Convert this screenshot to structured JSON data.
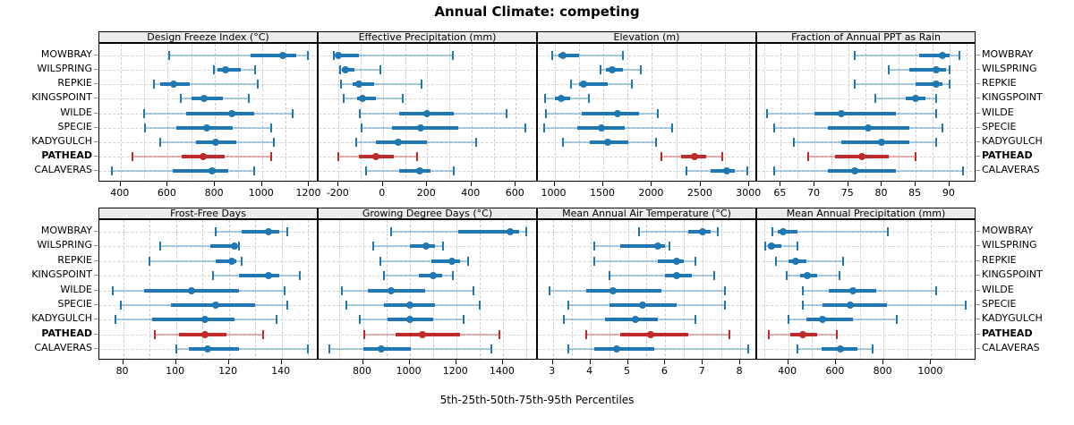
{
  "title": "Annual Climate: competing",
  "footer": "5th-25th-50th-75th-95th Percentiles",
  "sites": [
    "MOWBRAY",
    "WILSPRING",
    "REPKIE",
    "KINGSPOINT",
    "WILDE",
    "SPECIE",
    "KADYGULCH",
    "PATHEAD",
    "CALAVERAS"
  ],
  "highlight_site": "PATHEAD",
  "percentile_labels": [
    5,
    25,
    50,
    75,
    95
  ],
  "colors": {
    "series": "#1f77b4",
    "series_light": "rgba(31,119,180,0.35)",
    "highlight": "#bf2a2a",
    "highlight_light": "rgba(191,42,42,0.35)",
    "grid": "#d4d4d4",
    "strip_bg": "#ebebeb",
    "border": "#000000"
  },
  "chart_data": [
    {
      "type": "percentile-range",
      "title": "Design Freeze Index (°C)",
      "xlim": [
        310,
        1240
      ],
      "ticks": [
        400,
        600,
        800,
        1000,
        1200
      ],
      "values": [
        [
          605,
          950,
          1090,
          1145,
          1195
        ],
        [
          795,
          810,
          845,
          910,
          970
        ],
        [
          540,
          570,
          625,
          695,
          980
        ],
        [
          655,
          700,
          755,
          835,
          945
        ],
        [
          500,
          680,
          870,
          965,
          1130
        ],
        [
          505,
          635,
          765,
          875,
          1040
        ],
        [
          570,
          720,
          805,
          890,
          1050
        ],
        [
          450,
          660,
          750,
          840,
          1040
        ],
        [
          365,
          620,
          790,
          855,
          965
        ]
      ]
    },
    {
      "type": "percentile-range",
      "title": "Effective Precipitation (mm)",
      "xlim": [
        -290,
        700
      ],
      "ticks": [
        -200,
        0,
        200,
        400,
        600
      ],
      "values": [
        [
          -220,
          -212,
          -200,
          -110,
          315
        ],
        [
          -195,
          -185,
          -170,
          -130,
          -10
        ],
        [
          -190,
          -135,
          -110,
          -40,
          175
        ],
        [
          -175,
          -115,
          -90,
          -30,
          90
        ],
        [
          -105,
          75,
          200,
          320,
          560
        ],
        [
          -95,
          40,
          170,
          340,
          645
        ],
        [
          -120,
          -30,
          70,
          200,
          420
        ],
        [
          -200,
          -110,
          -30,
          50,
          155
        ],
        [
          -75,
          75,
          165,
          215,
          320
        ]
      ]
    },
    {
      "type": "percentile-range",
      "title": "Elevation (m)",
      "xlim": [
        830,
        3080
      ],
      "ticks": [
        1000,
        1500,
        2000,
        2500,
        3000
      ],
      "values": [
        [
          980,
          1040,
          1090,
          1250,
          1700
        ],
        [
          1470,
          1530,
          1590,
          1700,
          1890
        ],
        [
          1170,
          1250,
          1300,
          1550,
          1790
        ],
        [
          900,
          1000,
          1070,
          1160,
          1350
        ],
        [
          910,
          1280,
          1650,
          1870,
          2060
        ],
        [
          890,
          1230,
          1480,
          1720,
          2210
        ],
        [
          1090,
          1360,
          1550,
          1760,
          2040
        ],
        [
          2100,
          2300,
          2440,
          2560,
          2720
        ],
        [
          2350,
          2600,
          2770,
          2850,
          2980
        ]
      ]
    },
    {
      "type": "percentile-range",
      "title": "Fraction of Annual PPT as Rain",
      "xlim": [
        61.5,
        94
      ],
      "ticks": [
        65,
        70,
        75,
        80,
        85,
        90
      ],
      "values": [
        [
          76,
          85.5,
          89,
          90,
          91.5
        ],
        [
          81,
          84,
          88,
          89.5,
          90
        ],
        [
          76,
          85,
          88,
          89,
          90
        ],
        [
          79,
          83.5,
          85,
          86.5,
          88
        ],
        [
          63,
          70,
          74,
          82,
          88
        ],
        [
          64,
          72,
          78,
          84,
          89
        ],
        [
          67,
          74,
          80,
          84,
          88
        ],
        [
          69,
          73,
          77,
          81,
          85
        ],
        [
          64,
          72,
          76,
          82,
          92
        ]
      ]
    },
    {
      "type": "percentile-range",
      "title": "Frost-Free Days",
      "xlim": [
        71,
        154
      ],
      "ticks": [
        80,
        100,
        120,
        140
      ],
      "values": [
        [
          115,
          125,
          135,
          139,
          142
        ],
        [
          94,
          113,
          122,
          123,
          124
        ],
        [
          90,
          115,
          121,
          123,
          125
        ],
        [
          114,
          124,
          135,
          139,
          147
        ],
        [
          76,
          88,
          106,
          124,
          141
        ],
        [
          79,
          98,
          115,
          130,
          142
        ],
        [
          77,
          91,
          111,
          122,
          138
        ],
        [
          92,
          101,
          111,
          119,
          133
        ],
        [
          100,
          105,
          112,
          124,
          150
        ]
      ]
    },
    {
      "type": "percentile-range",
      "title": "Growing Degree Days (°C)",
      "xlim": [
        610,
        1550
      ],
      "ticks": [
        800,
        1000,
        1200,
        1400
      ],
      "values": [
        [
          920,
          1210,
          1430,
          1470,
          1500
        ],
        [
          845,
          1000,
          1070,
          1110,
          1145
        ],
        [
          875,
          1095,
          1180,
          1215,
          1250
        ],
        [
          890,
          1040,
          1100,
          1140,
          1185
        ],
        [
          710,
          820,
          920,
          1065,
          1275
        ],
        [
          730,
          890,
          1000,
          1110,
          1300
        ],
        [
          785,
          905,
          1000,
          1100,
          1230
        ],
        [
          805,
          940,
          1055,
          1215,
          1385
        ],
        [
          655,
          800,
          880,
          1005,
          1350
        ]
      ]
    },
    {
      "type": "percentile-range",
      "title": "Mean Annual Air Temperature (°C)",
      "xlim": [
        2.6,
        8.45
      ],
      "ticks": [
        3,
        4,
        5,
        6,
        7,
        8
      ],
      "values": [
        [
          5.3,
          6.6,
          7.0,
          7.2,
          7.4
        ],
        [
          4.1,
          4.8,
          5.8,
          6.0,
          6.1
        ],
        [
          4.1,
          5.8,
          6.3,
          6.5,
          6.8
        ],
        [
          4.5,
          6.0,
          6.3,
          6.7,
          7.3
        ],
        [
          2.9,
          3.9,
          4.6,
          5.9,
          7.6
        ],
        [
          3.4,
          4.5,
          5.4,
          6.3,
          7.6
        ],
        [
          3.3,
          4.4,
          5.2,
          5.8,
          6.8
        ],
        [
          3.9,
          4.8,
          5.6,
          6.6,
          7.7
        ],
        [
          3.4,
          4.1,
          4.7,
          5.7,
          8.2
        ]
      ]
    },
    {
      "type": "percentile-range",
      "title": "Mean Annual Precipitation (mm)",
      "xlim": [
        270,
        1190
      ],
      "ticks": [
        400,
        600,
        800,
        1000
      ],
      "values": [
        [
          335,
          355,
          380,
          440,
          820
        ],
        [
          305,
          315,
          330,
          370,
          440
        ],
        [
          350,
          400,
          430,
          475,
          630
        ],
        [
          395,
          450,
          480,
          520,
          615
        ],
        [
          460,
          570,
          670,
          770,
          1020
        ],
        [
          460,
          545,
          660,
          815,
          1145
        ],
        [
          400,
          475,
          545,
          670,
          855
        ],
        [
          320,
          410,
          460,
          520,
          605
        ],
        [
          440,
          540,
          620,
          690,
          755
        ]
      ]
    }
  ]
}
